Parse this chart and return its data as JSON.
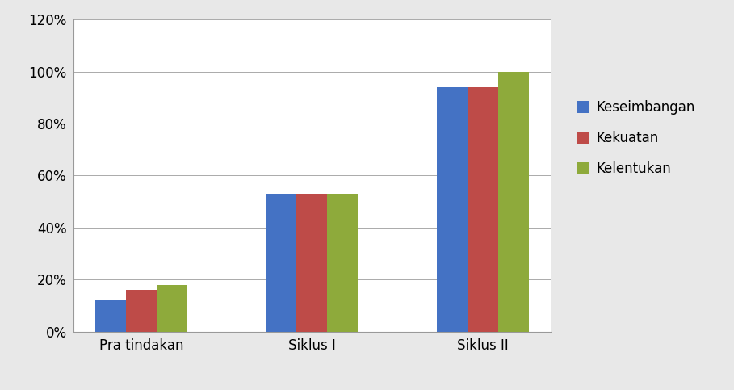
{
  "categories": [
    "Pra tindakan",
    "Siklus I",
    "Siklus II"
  ],
  "series": {
    "Keseimbangan": [
      0.12,
      0.53,
      0.94
    ],
    "Kekuatan": [
      0.16,
      0.53,
      0.94
    ],
    "Kelentukan": [
      0.18,
      0.53,
      1.0
    ]
  },
  "colors": {
    "Keseimbangan": "#4472C4",
    "Kekuatan": "#BE4B48",
    "Kelentukan": "#8EAA3B"
  },
  "ylim": [
    0,
    1.2
  ],
  "yticks": [
    0,
    0.2,
    0.4,
    0.6,
    0.8,
    1.0,
    1.2
  ],
  "ytick_labels": [
    "0%",
    "20%",
    "40%",
    "60%",
    "80%",
    "100%",
    "120%"
  ],
  "legend_labels": [
    "Keseimbangan",
    "Kekuatan",
    "Kelentukan"
  ],
  "bar_width": 0.18,
  "background_color": "#FFFFFF",
  "outer_background": "#E8E8E8",
  "grid_color": "#AAAAAA",
  "legend_fontsize": 12,
  "tick_fontsize": 12,
  "label_fontsize": 12
}
